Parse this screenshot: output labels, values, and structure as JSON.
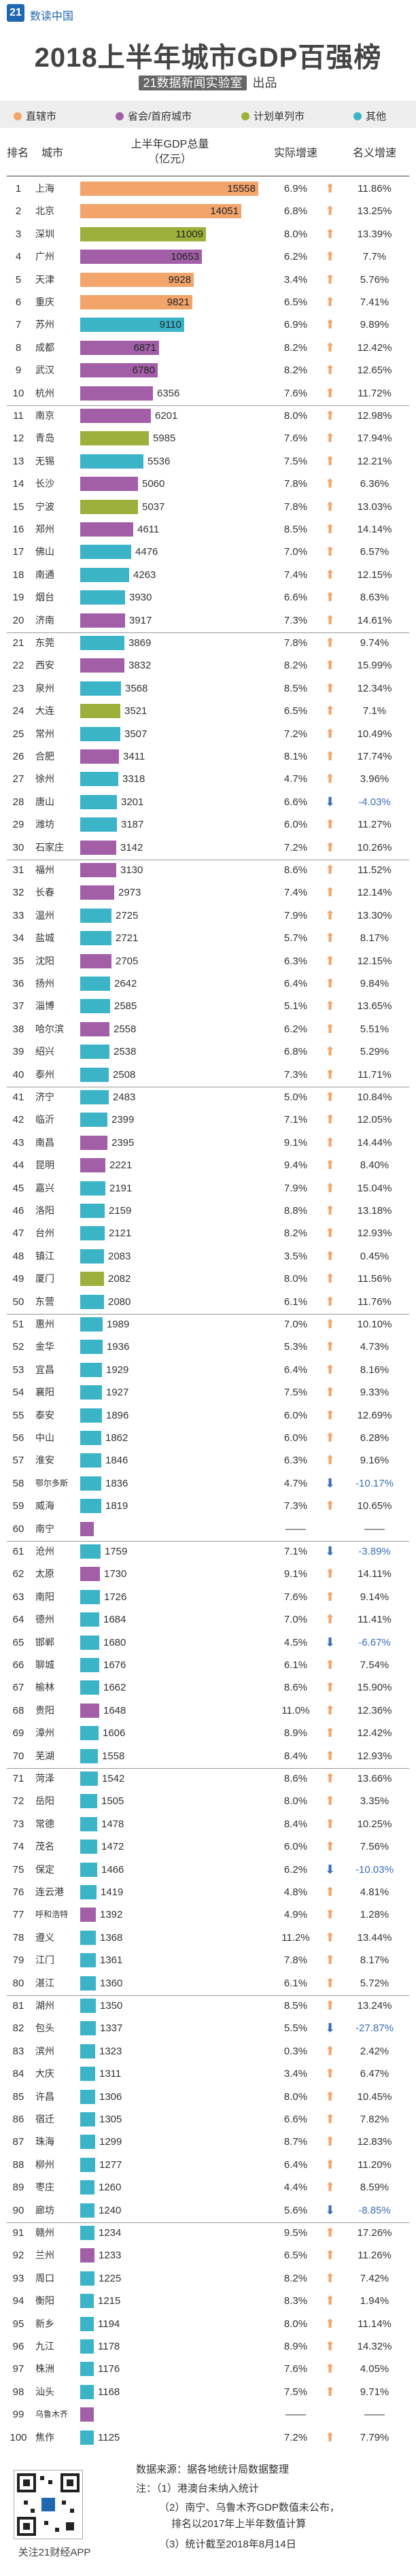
{
  "header": {
    "logo_text": "21",
    "brand": "数读中国"
  },
  "title": "2018上半年城市GDP百强榜",
  "producer": {
    "box": "21数据新闻实验室",
    "suffix": "出品"
  },
  "legend": [
    {
      "label": "直辖市",
      "color": "#f2a46b"
    },
    {
      "label": "省会/首府城市",
      "color": "#a25fa8"
    },
    {
      "label": "计划单列市",
      "color": "#9db03b"
    },
    {
      "label": "其他",
      "color": "#3bb4c8"
    }
  ],
  "columns": {
    "rank": "排名",
    "city": "城市",
    "gdp": "上半年GDP总量\n（亿元）",
    "growth": "实际增速",
    "rank_change": "名义增速"
  },
  "colors": {
    "up": "#f2a46b",
    "down": "#3b6fb6",
    "sep": "#999999"
  },
  "chart_data": {
    "type": "bar",
    "xlabel": "",
    "ylabel": "",
    "rows": [
      {
        "rank": "1",
        "city": "上海",
        "gdp": 15558,
        "cat": 0,
        "growth": "6.9%",
        "dir": "up",
        "nominal": "11.86%"
      },
      {
        "rank": "2",
        "city": "北京",
        "gdp": 14051,
        "cat": 0,
        "growth": "6.8%",
        "dir": "up",
        "nominal": "13.25%"
      },
      {
        "rank": "3",
        "city": "深圳",
        "gdp": 11009,
        "cat": 2,
        "growth": "8.0%",
        "dir": "up",
        "nominal": "13.39%"
      },
      {
        "rank": "4",
        "city": "广州",
        "gdp": 10653,
        "cat": 1,
        "growth": "6.2%",
        "dir": "up",
        "nominal": "7.7%"
      },
      {
        "rank": "5",
        "city": "天津",
        "gdp": 9928,
        "cat": 0,
        "growth": "3.4%",
        "dir": "up",
        "nominal": "5.76%"
      },
      {
        "rank": "6",
        "city": "重庆",
        "gdp": 9821,
        "cat": 0,
        "growth": "6.5%",
        "dir": "up",
        "nominal": "7.41%"
      },
      {
        "rank": "7",
        "city": "苏州",
        "gdp": 9110,
        "cat": 3,
        "growth": "6.9%",
        "dir": "up",
        "nominal": "9.89%"
      },
      {
        "rank": "8",
        "city": "成都",
        "gdp": 6871,
        "cat": 1,
        "growth": "8.2%",
        "dir": "up",
        "nominal": "12.42%"
      },
      {
        "rank": "9",
        "city": "武汉",
        "gdp": 6780,
        "cat": 1,
        "growth": "8.2%",
        "dir": "up",
        "nominal": "12.65%"
      },
      {
        "rank": "10",
        "city": "杭州",
        "gdp": 6356,
        "cat": 1,
        "growth": "7.6%",
        "dir": "up",
        "nominal": "11.72%"
      },
      {
        "rank": "11",
        "city": "南京",
        "gdp": 6201,
        "cat": 1,
        "growth": "8.0%",
        "dir": "up",
        "nominal": "12.98%"
      },
      {
        "rank": "12",
        "city": "青岛",
        "gdp": 5985,
        "cat": 2,
        "growth": "7.6%",
        "dir": "up",
        "nominal": "17.94%"
      },
      {
        "rank": "13",
        "city": "无锡",
        "gdp": 5536,
        "cat": 3,
        "growth": "7.5%",
        "dir": "up",
        "nominal": "12.21%"
      },
      {
        "rank": "14",
        "city": "长沙",
        "gdp": 5060,
        "cat": 1,
        "growth": "7.8%",
        "dir": "up",
        "nominal": "6.36%"
      },
      {
        "rank": "15",
        "city": "宁波",
        "gdp": 5037,
        "cat": 2,
        "growth": "7.8%",
        "dir": "up",
        "nominal": "13.03%"
      },
      {
        "rank": "16",
        "city": "郑州",
        "gdp": 4611,
        "cat": 1,
        "growth": "8.5%",
        "dir": "up",
        "nominal": "14.14%"
      },
      {
        "rank": "17",
        "city": "佛山",
        "gdp": 4476,
        "cat": 3,
        "growth": "7.0%",
        "dir": "up",
        "nominal": "6.57%"
      },
      {
        "rank": "18",
        "city": "南通",
        "gdp": 4263,
        "cat": 3,
        "growth": "7.4%",
        "dir": "up",
        "nominal": "12.15%"
      },
      {
        "rank": "19",
        "city": "烟台",
        "gdp": 3930,
        "cat": 3,
        "growth": "6.6%",
        "dir": "up",
        "nominal": "8.63%"
      },
      {
        "rank": "20",
        "city": "济南",
        "gdp": 3917,
        "cat": 1,
        "growth": "7.3%",
        "dir": "up",
        "nominal": "14.61%"
      },
      {
        "rank": "21",
        "city": "东莞",
        "gdp": 3869,
        "cat": 3,
        "growth": "7.8%",
        "dir": "up",
        "nominal": "9.74%"
      },
      {
        "rank": "22",
        "city": "西安",
        "gdp": 3832,
        "cat": 1,
        "growth": "8.2%",
        "dir": "up",
        "nominal": "15.99%"
      },
      {
        "rank": "23",
        "city": "泉州",
        "gdp": 3568,
        "cat": 3,
        "growth": "8.5%",
        "dir": "up",
        "nominal": "12.34%"
      },
      {
        "rank": "24",
        "city": "大连",
        "gdp": 3521,
        "cat": 2,
        "growth": "6.5%",
        "dir": "up",
        "nominal": "7.1%"
      },
      {
        "rank": "25",
        "city": "常州",
        "gdp": 3507,
        "cat": 3,
        "growth": "7.2%",
        "dir": "up",
        "nominal": "10.49%"
      },
      {
        "rank": "26",
        "city": "合肥",
        "gdp": 3411,
        "cat": 1,
        "growth": "8.1%",
        "dir": "up",
        "nominal": "17.74%"
      },
      {
        "rank": "27",
        "city": "徐州",
        "gdp": 3318,
        "cat": 3,
        "growth": "4.7%",
        "dir": "up",
        "nominal": "3.96%"
      },
      {
        "rank": "28",
        "city": "唐山",
        "gdp": 3201,
        "cat": 3,
        "growth": "6.6%",
        "dir": "down",
        "nominal": "-4.03%"
      },
      {
        "rank": "29",
        "city": "潍坊",
        "gdp": 3187,
        "cat": 3,
        "growth": "6.0%",
        "dir": "up",
        "nominal": "11.27%"
      },
      {
        "rank": "30",
        "city": "石家庄",
        "gdp": 3142,
        "cat": 1,
        "growth": "7.2%",
        "dir": "up",
        "nominal": "10.26%"
      },
      {
        "rank": "31",
        "city": "福州",
        "gdp": 3130,
        "cat": 1,
        "growth": "8.6%",
        "dir": "up",
        "nominal": "11.52%"
      },
      {
        "rank": "32",
        "city": "长春",
        "gdp": 2973,
        "cat": 1,
        "growth": "7.4%",
        "dir": "up",
        "nominal": "12.14%"
      },
      {
        "rank": "33",
        "city": "温州",
        "gdp": 2725,
        "cat": 3,
        "growth": "7.9%",
        "dir": "up",
        "nominal": "13.30%"
      },
      {
        "rank": "34",
        "city": "盐城",
        "gdp": 2721,
        "cat": 3,
        "growth": "5.7%",
        "dir": "up",
        "nominal": "8.17%"
      },
      {
        "rank": "35",
        "city": "沈阳",
        "gdp": 2705,
        "cat": 1,
        "growth": "6.3%",
        "dir": "up",
        "nominal": "12.15%"
      },
      {
        "rank": "36",
        "city": "扬州",
        "gdp": 2642,
        "cat": 3,
        "growth": "6.4%",
        "dir": "up",
        "nominal": "9.84%"
      },
      {
        "rank": "37",
        "city": "淄博",
        "gdp": 2585,
        "cat": 3,
        "growth": "5.1%",
        "dir": "up",
        "nominal": "13.65%"
      },
      {
        "rank": "38",
        "city": "哈尔滨",
        "gdp": 2558,
        "cat": 1,
        "growth": "6.2%",
        "dir": "up",
        "nominal": "5.51%"
      },
      {
        "rank": "39",
        "city": "绍兴",
        "gdp": 2538,
        "cat": 3,
        "growth": "6.8%",
        "dir": "up",
        "nominal": "5.29%"
      },
      {
        "rank": "40",
        "city": "泰州",
        "gdp": 2508,
        "cat": 3,
        "growth": "7.3%",
        "dir": "up",
        "nominal": "11.71%"
      },
      {
        "rank": "41",
        "city": "济宁",
        "gdp": 2483,
        "cat": 3,
        "growth": "5.0%",
        "dir": "up",
        "nominal": "10.84%"
      },
      {
        "rank": "42",
        "city": "临沂",
        "gdp": 2399,
        "cat": 3,
        "growth": "7.1%",
        "dir": "up",
        "nominal": "12.05%"
      },
      {
        "rank": "43",
        "city": "南昌",
        "gdp": 2395,
        "cat": 1,
        "growth": "9.1%",
        "dir": "up",
        "nominal": "14.44%"
      },
      {
        "rank": "44",
        "city": "昆明",
        "gdp": 2221,
        "cat": 1,
        "growth": "9.4%",
        "dir": "up",
        "nominal": "8.40%"
      },
      {
        "rank": "45",
        "city": "嘉兴",
        "gdp": 2191,
        "cat": 3,
        "growth": "7.9%",
        "dir": "up",
        "nominal": "15.04%"
      },
      {
        "rank": "46",
        "city": "洛阳",
        "gdp": 2159,
        "cat": 3,
        "growth": "8.8%",
        "dir": "up",
        "nominal": "13.18%"
      },
      {
        "rank": "47",
        "city": "台州",
        "gdp": 2121,
        "cat": 3,
        "growth": "8.2%",
        "dir": "up",
        "nominal": "12.93%"
      },
      {
        "rank": "48",
        "city": "镇江",
        "gdp": 2083,
        "cat": 3,
        "growth": "3.5%",
        "dir": "up",
        "nominal": "0.45%"
      },
      {
        "rank": "49",
        "city": "厦门",
        "gdp": 2082,
        "cat": 2,
        "growth": "8.0%",
        "dir": "up",
        "nominal": "11.56%"
      },
      {
        "rank": "50",
        "city": "东营",
        "gdp": 2080,
        "cat": 3,
        "growth": "6.1%",
        "dir": "up",
        "nominal": "11.76%"
      },
      {
        "rank": "51",
        "city": "惠州",
        "gdp": 1989,
        "cat": 3,
        "growth": "7.0%",
        "dir": "up",
        "nominal": "10.10%"
      },
      {
        "rank": "52",
        "city": "金华",
        "gdp": 1936,
        "cat": 3,
        "growth": "5.3%",
        "dir": "up",
        "nominal": "4.73%"
      },
      {
        "rank": "53",
        "city": "宜昌",
        "gdp": 1929,
        "cat": 3,
        "growth": "6.4%",
        "dir": "up",
        "nominal": "8.16%"
      },
      {
        "rank": "54",
        "city": "襄阳",
        "gdp": 1927,
        "cat": 3,
        "growth": "7.5%",
        "dir": "up",
        "nominal": "9.33%"
      },
      {
        "rank": "55",
        "city": "泰安",
        "gdp": 1896,
        "cat": 3,
        "growth": "6.0%",
        "dir": "up",
        "nominal": "12.69%"
      },
      {
        "rank": "56",
        "city": "中山",
        "gdp": 1862,
        "cat": 3,
        "growth": "6.0%",
        "dir": "up",
        "nominal": "6.28%"
      },
      {
        "rank": "57",
        "city": "淮安",
        "gdp": 1846,
        "cat": 3,
        "growth": "6.3%",
        "dir": "up",
        "nominal": "9.16%"
      },
      {
        "rank": "58",
        "city": "鄂尔多斯",
        "gdp": 1836,
        "cat": 3,
        "growth": "4.7%",
        "dir": "down",
        "nominal": "-10.17%"
      },
      {
        "rank": "59",
        "city": "威海",
        "gdp": 1819,
        "cat": 3,
        "growth": "7.3%",
        "dir": "up",
        "nominal": "10.65%"
      },
      {
        "rank": "60",
        "city": "南宁",
        "gdp": null,
        "cat": 1,
        "growth": "——",
        "dir": "",
        "nominal": "——"
      },
      {
        "rank": "61",
        "city": "沧州",
        "gdp": 1759,
        "cat": 3,
        "growth": "7.1%",
        "dir": "down",
        "nominal": "-3.89%"
      },
      {
        "rank": "62",
        "city": "太原",
        "gdp": 1730,
        "cat": 1,
        "growth": "9.1%",
        "dir": "up",
        "nominal": "14.11%"
      },
      {
        "rank": "63",
        "city": "南阳",
        "gdp": 1726,
        "cat": 3,
        "growth": "7.6%",
        "dir": "up",
        "nominal": "9.14%"
      },
      {
        "rank": "64",
        "city": "德州",
        "gdp": 1684,
        "cat": 3,
        "growth": "7.0%",
        "dir": "up",
        "nominal": "11.41%"
      },
      {
        "rank": "65",
        "city": "邯郸",
        "gdp": 1680,
        "cat": 3,
        "growth": "4.5%",
        "dir": "down",
        "nominal": "-6.67%"
      },
      {
        "rank": "66",
        "city": "聊城",
        "gdp": 1676,
        "cat": 3,
        "growth": "6.1%",
        "dir": "up",
        "nominal": "7.54%"
      },
      {
        "rank": "67",
        "city": "榆林",
        "gdp": 1662,
        "cat": 3,
        "growth": "8.6%",
        "dir": "up",
        "nominal": "15.90%"
      },
      {
        "rank": "68",
        "city": "贵阳",
        "gdp": 1648,
        "cat": 1,
        "growth": "11.0%",
        "dir": "up",
        "nominal": "12.36%"
      },
      {
        "rank": "69",
        "city": "漳州",
        "gdp": 1606,
        "cat": 3,
        "growth": "8.9%",
        "dir": "up",
        "nominal": "12.42%"
      },
      {
        "rank": "70",
        "city": "芜湖",
        "gdp": 1558,
        "cat": 3,
        "growth": "8.4%",
        "dir": "up",
        "nominal": "12.93%"
      },
      {
        "rank": "71",
        "city": "菏泽",
        "gdp": 1542,
        "cat": 3,
        "growth": "8.6%",
        "dir": "up",
        "nominal": "13.66%"
      },
      {
        "rank": "72",
        "city": "岳阳",
        "gdp": 1505,
        "cat": 3,
        "growth": "8.0%",
        "dir": "up",
        "nominal": "3.35%"
      },
      {
        "rank": "73",
        "city": "常德",
        "gdp": 1478,
        "cat": 3,
        "growth": "8.4%",
        "dir": "up",
        "nominal": "10.25%"
      },
      {
        "rank": "74",
        "city": "茂名",
        "gdp": 1472,
        "cat": 3,
        "growth": "6.0%",
        "dir": "up",
        "nominal": "7.56%"
      },
      {
        "rank": "75",
        "city": "保定",
        "gdp": 1466,
        "cat": 3,
        "growth": "6.2%",
        "dir": "down",
        "nominal": "-10.03%"
      },
      {
        "rank": "76",
        "city": "连云港",
        "gdp": 1419,
        "cat": 3,
        "growth": "4.8%",
        "dir": "up",
        "nominal": "4.81%"
      },
      {
        "rank": "77",
        "city": "呼和浩特",
        "gdp": 1392,
        "cat": 1,
        "growth": "4.9%",
        "dir": "up",
        "nominal": "1.28%"
      },
      {
        "rank": "78",
        "city": "遵义",
        "gdp": 1368,
        "cat": 3,
        "growth": "11.2%",
        "dir": "up",
        "nominal": "13.44%"
      },
      {
        "rank": "79",
        "city": "江门",
        "gdp": 1361,
        "cat": 3,
        "growth": "7.8%",
        "dir": "up",
        "nominal": "8.17%"
      },
      {
        "rank": "80",
        "city": "湛江",
        "gdp": 1360,
        "cat": 3,
        "growth": "6.1%",
        "dir": "up",
        "nominal": "5.72%"
      },
      {
        "rank": "81",
        "city": "湖州",
        "gdp": 1350,
        "cat": 3,
        "growth": "8.5%",
        "dir": "up",
        "nominal": "13.24%"
      },
      {
        "rank": "82",
        "city": "包头",
        "gdp": 1337,
        "cat": 3,
        "growth": "5.5%",
        "dir": "down",
        "nominal": "-27.87%"
      },
      {
        "rank": "83",
        "city": "滨州",
        "gdp": 1323,
        "cat": 3,
        "growth": "0.3%",
        "dir": "up",
        "nominal": "2.42%"
      },
      {
        "rank": "84",
        "city": "大庆",
        "gdp": 1311,
        "cat": 3,
        "growth": "3.4%",
        "dir": "up",
        "nominal": "6.47%"
      },
      {
        "rank": "85",
        "city": "许昌",
        "gdp": 1306,
        "cat": 3,
        "growth": "8.0%",
        "dir": "up",
        "nominal": "10.45%"
      },
      {
        "rank": "86",
        "city": "宿迁",
        "gdp": 1305,
        "cat": 3,
        "growth": "6.6%",
        "dir": "up",
        "nominal": "7.82%"
      },
      {
        "rank": "87",
        "city": "珠海",
        "gdp": 1299,
        "cat": 3,
        "growth": "8.7%",
        "dir": "up",
        "nominal": "12.83%"
      },
      {
        "rank": "88",
        "city": "柳州",
        "gdp": 1277,
        "cat": 3,
        "growth": "6.4%",
        "dir": "up",
        "nominal": "11.20%"
      },
      {
        "rank": "89",
        "city": "枣庄",
        "gdp": 1260,
        "cat": 3,
        "growth": "4.4%",
        "dir": "up",
        "nominal": "8.59%"
      },
      {
        "rank": "90",
        "city": "廊坊",
        "gdp": 1240,
        "cat": 3,
        "growth": "5.6%",
        "dir": "down",
        "nominal": "-8.85%"
      },
      {
        "rank": "91",
        "city": "赣州",
        "gdp": 1234,
        "cat": 3,
        "growth": "9.5%",
        "dir": "up",
        "nominal": "17.26%"
      },
      {
        "rank": "92",
        "city": "兰州",
        "gdp": 1233,
        "cat": 1,
        "growth": "6.5%",
        "dir": "up",
        "nominal": "11.26%"
      },
      {
        "rank": "93",
        "city": "周口",
        "gdp": 1225,
        "cat": 3,
        "growth": "8.2%",
        "dir": "up",
        "nominal": "7.42%"
      },
      {
        "rank": "94",
        "city": "衡阳",
        "gdp": 1215,
        "cat": 3,
        "growth": "8.3%",
        "dir": "up",
        "nominal": "1.94%"
      },
      {
        "rank": "95",
        "city": "新乡",
        "gdp": 1194,
        "cat": 3,
        "growth": "8.0%",
        "dir": "up",
        "nominal": "11.14%"
      },
      {
        "rank": "96",
        "city": "九江",
        "gdp": 1178,
        "cat": 3,
        "growth": "8.9%",
        "dir": "up",
        "nominal": "14.32%"
      },
      {
        "rank": "97",
        "city": "株洲",
        "gdp": 1176,
        "cat": 3,
        "growth": "7.6%",
        "dir": "up",
        "nominal": "4.05%"
      },
      {
        "rank": "98",
        "city": "汕头",
        "gdp": 1168,
        "cat": 3,
        "growth": "7.5%",
        "dir": "up",
        "nominal": "9.71%"
      },
      {
        "rank": "99",
        "city": "乌鲁木齐",
        "gdp": null,
        "cat": 1,
        "growth": "——",
        "dir": "",
        "nominal": "——"
      },
      {
        "rank": "100",
        "city": "焦作",
        "gdp": 1125,
        "cat": 3,
        "growth": "7.2%",
        "dir": "up",
        "nominal": "7.79%"
      }
    ]
  },
  "footer": {
    "qr_caption": "关注21财经APP",
    "source": "数据来源：据各地统计局数据整理",
    "note1": "注：（1）港澳台未纳入统计",
    "note2a": "（2）南宁、乌鲁木齐GDP数值未公布，",
    "note2b": "排名以2017年上半年数值计算",
    "note3": "（3）统计截至2018年8月14日"
  }
}
